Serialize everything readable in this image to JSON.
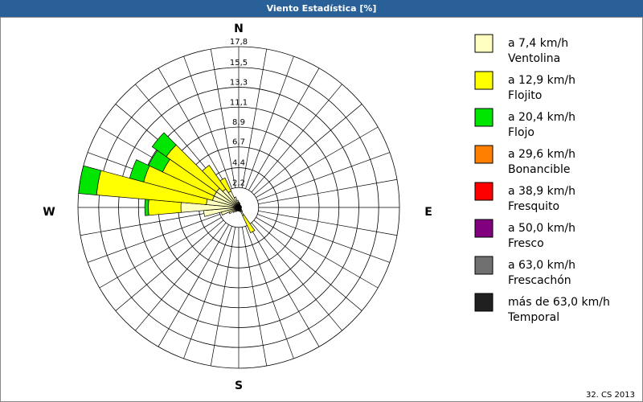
{
  "chart_data": {
    "type": "windrose",
    "title": "Viento Estadística [%]",
    "footer": "32. CS 2013",
    "categories": [
      "N",
      null,
      null,
      null,
      null,
      null,
      null,
      null,
      null,
      "E",
      null,
      null,
      null,
      null,
      null,
      null,
      null,
      null,
      "S",
      null,
      null,
      null,
      null,
      null,
      null,
      null,
      null,
      "W",
      null,
      null,
      null,
      null,
      null,
      null,
      null,
      null
    ],
    "rlim": [
      0,
      17.8
    ],
    "rticks": [
      {
        "value": 2.2,
        "label": "2,2"
      },
      {
        "value": 4.4,
        "label": "4,4"
      },
      {
        "value": 6.7,
        "label": "6,7"
      },
      {
        "value": 8.9,
        "label": "8,9"
      },
      {
        "value": 11.1,
        "label": "11,1"
      },
      {
        "value": 13.3,
        "label": "13,3"
      },
      {
        "value": 15.5,
        "label": "15,5"
      },
      {
        "value": 17.8,
        "label": "17,8"
      }
    ],
    "series": [
      {
        "name": "a 7,4 km/h",
        "label": "Ventolina",
        "color": "#ffffc0",
        "values": [
          0.6,
          0.5,
          0.4,
          0.3,
          0.3,
          0.3,
          0.3,
          0.3,
          0.3,
          0.3,
          0.3,
          0.3,
          0.3,
          0.4,
          0.6,
          1.0,
          0.5,
          0.4,
          0.4,
          0.4,
          0.4,
          0.5,
          0.6,
          0.8,
          1.2,
          2.0,
          3.9,
          6.4,
          3.6,
          3.0,
          3.0,
          3.0,
          2.5,
          2.0,
          1.2,
          0.8
        ]
      },
      {
        "name": "a 12,9 km/h",
        "label": "Flojito",
        "color": "#ffff00",
        "values": [
          0,
          0,
          0,
          0,
          0,
          0,
          0,
          0,
          0,
          0,
          0,
          0,
          0,
          0,
          0,
          2.1,
          0,
          0,
          0,
          0,
          0,
          0,
          0,
          0,
          0,
          0,
          0,
          3.6,
          12.2,
          7.9,
          6.3,
          6.8,
          3.2,
          1.6,
          0,
          0
        ]
      },
      {
        "name": "a 20,4 km/h",
        "label": "Flojo",
        "color": "#00e600",
        "values": [
          0,
          0,
          0,
          0,
          0,
          0,
          0,
          0,
          0,
          0,
          0,
          0,
          0,
          0,
          0,
          0,
          0,
          0,
          0,
          0,
          0,
          0,
          0,
          0,
          0,
          0,
          0,
          0.4,
          2.0,
          1.6,
          1.7,
          1.9,
          0,
          0,
          0,
          0
        ]
      },
      {
        "name": "a 29,6 km/h",
        "label": "Bonancible",
        "color": "#ff8000",
        "values": [
          0,
          0,
          0,
          0,
          0,
          0,
          0,
          0,
          0,
          0,
          0,
          0,
          0,
          0,
          0,
          0,
          0,
          0,
          0,
          0,
          0,
          0,
          0,
          0,
          0,
          0,
          0,
          0,
          0,
          0,
          0,
          0,
          0,
          0,
          0,
          0
        ]
      },
      {
        "name": "a 38,9 km/h",
        "label": "Fresquito",
        "color": "#ff0000",
        "values": [
          0,
          0,
          0,
          0,
          0,
          0,
          0,
          0,
          0,
          0,
          0,
          0,
          0,
          0,
          0,
          0,
          0,
          0,
          0,
          0,
          0,
          0,
          0,
          0,
          0,
          0,
          0,
          0,
          0,
          0,
          0,
          0,
          0,
          0,
          0,
          0
        ]
      },
      {
        "name": "a 50,0 km/h",
        "label": "Fresco",
        "color": "#800080",
        "values": [
          0,
          0,
          0,
          0,
          0,
          0,
          0,
          0,
          0,
          0,
          0,
          0,
          0,
          0,
          0,
          0,
          0,
          0,
          0,
          0,
          0,
          0,
          0,
          0,
          0,
          0,
          0,
          0,
          0,
          0,
          0,
          0,
          0,
          0,
          0,
          0
        ]
      },
      {
        "name": "a 63,0 km/h",
        "label": "Frescachón",
        "color": "#707070",
        "values": [
          0,
          0,
          0,
          0,
          0,
          0,
          0,
          0,
          0,
          0,
          0,
          0,
          0,
          0,
          0,
          0,
          0,
          0,
          0,
          0,
          0,
          0,
          0,
          0,
          0,
          0,
          0,
          0,
          0,
          0,
          0,
          0,
          0,
          0,
          0,
          0
        ]
      },
      {
        "name": "más de 63,0 km/h",
        "label": "Temporal",
        "color": "#202020",
        "values": [
          0,
          0,
          0,
          0,
          0,
          0,
          0,
          0,
          0,
          0,
          0,
          0,
          0,
          0,
          0,
          0,
          0,
          0,
          0,
          0,
          0,
          0,
          0,
          0,
          0,
          0,
          0,
          0,
          0,
          0,
          0,
          0,
          0,
          0,
          0,
          0
        ]
      }
    ]
  }
}
